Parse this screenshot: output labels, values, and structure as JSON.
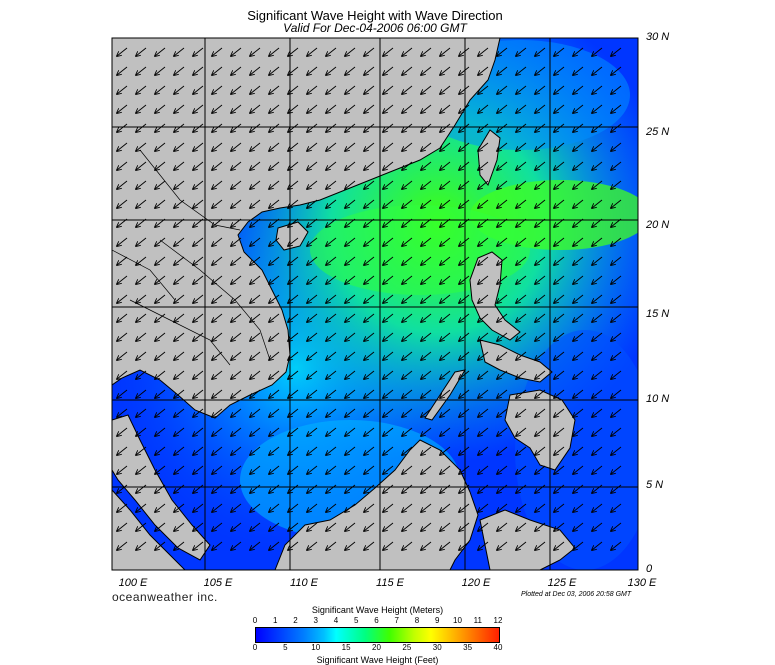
{
  "header": {
    "title": "Significant Wave Height with Wave Direction",
    "subtitle": "Valid For Dec-04-2006 06:00 GMT"
  },
  "axes": {
    "lat_labels": [
      "30 N",
      "25 N",
      "20 N",
      "15 N",
      "10 N",
      "5 N",
      "0"
    ],
    "lon_labels": [
      "100 E",
      "105 E",
      "110 E",
      "115 E",
      "120 E",
      "125 E",
      "130 E"
    ]
  },
  "footer": {
    "brand": "oceanweather inc.",
    "plotted": "Plotted at Dec 03, 2006 20:58 GMT"
  },
  "colorbar": {
    "meters_title": "Significant Wave Height (Meters)",
    "feet_title": "Significant Wave Height (Feet)",
    "meters_ticks": [
      "0",
      "1",
      "2",
      "3",
      "4",
      "5",
      "6",
      "7",
      "8",
      "9",
      "10",
      "11",
      "12"
    ],
    "feet_ticks": [
      "0",
      "5",
      "10",
      "15",
      "20",
      "25",
      "30",
      "35",
      "40"
    ]
  },
  "colors": {
    "land": "#c0c0c0",
    "low_wave": "#0030ff",
    "mid_wave": "#00c8ff",
    "high_wave": "#40ff00"
  }
}
